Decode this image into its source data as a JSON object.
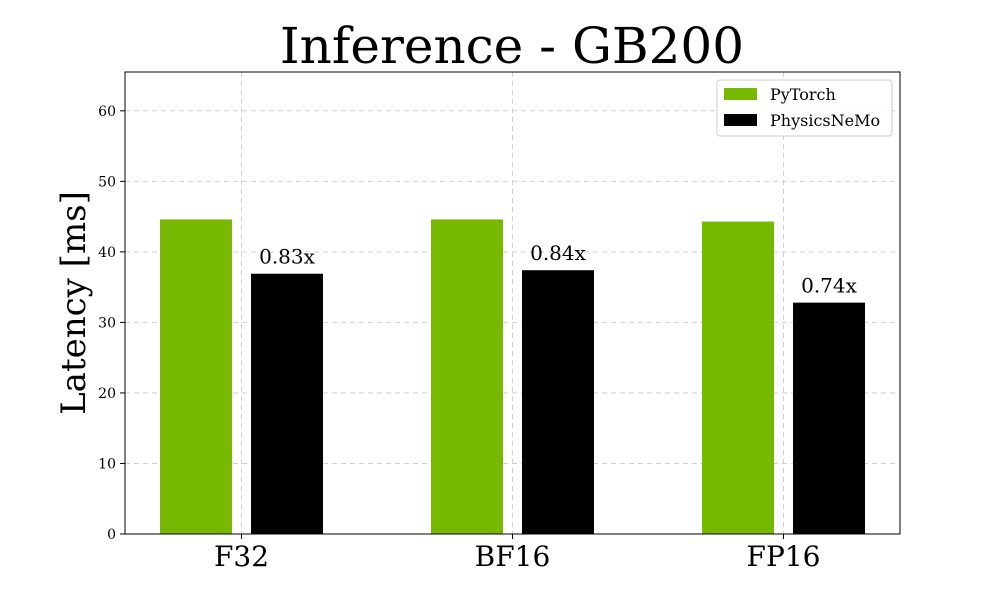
{
  "chart_data": {
    "type": "bar",
    "title": "Inference - GB200",
    "xlabel": "",
    "ylabel": "Latency [ms]",
    "categories": [
      "F32",
      "BF16",
      "FP16"
    ],
    "series": [
      {
        "name": "PyTorch",
        "color": "#76b900",
        "values": [
          44.6,
          44.6,
          44.3
        ]
      },
      {
        "name": "PhysicsNeMo",
        "color": "#000000",
        "values": [
          36.9,
          37.4,
          32.8
        ],
        "labels": [
          "0.83x",
          "0.84x",
          "0.74x"
        ]
      }
    ],
    "ylim": [
      0,
      65.5
    ],
    "yticks": [
      0,
      10,
      20,
      30,
      40,
      50,
      60
    ],
    "grid": true,
    "legend_position": "top-right"
  }
}
